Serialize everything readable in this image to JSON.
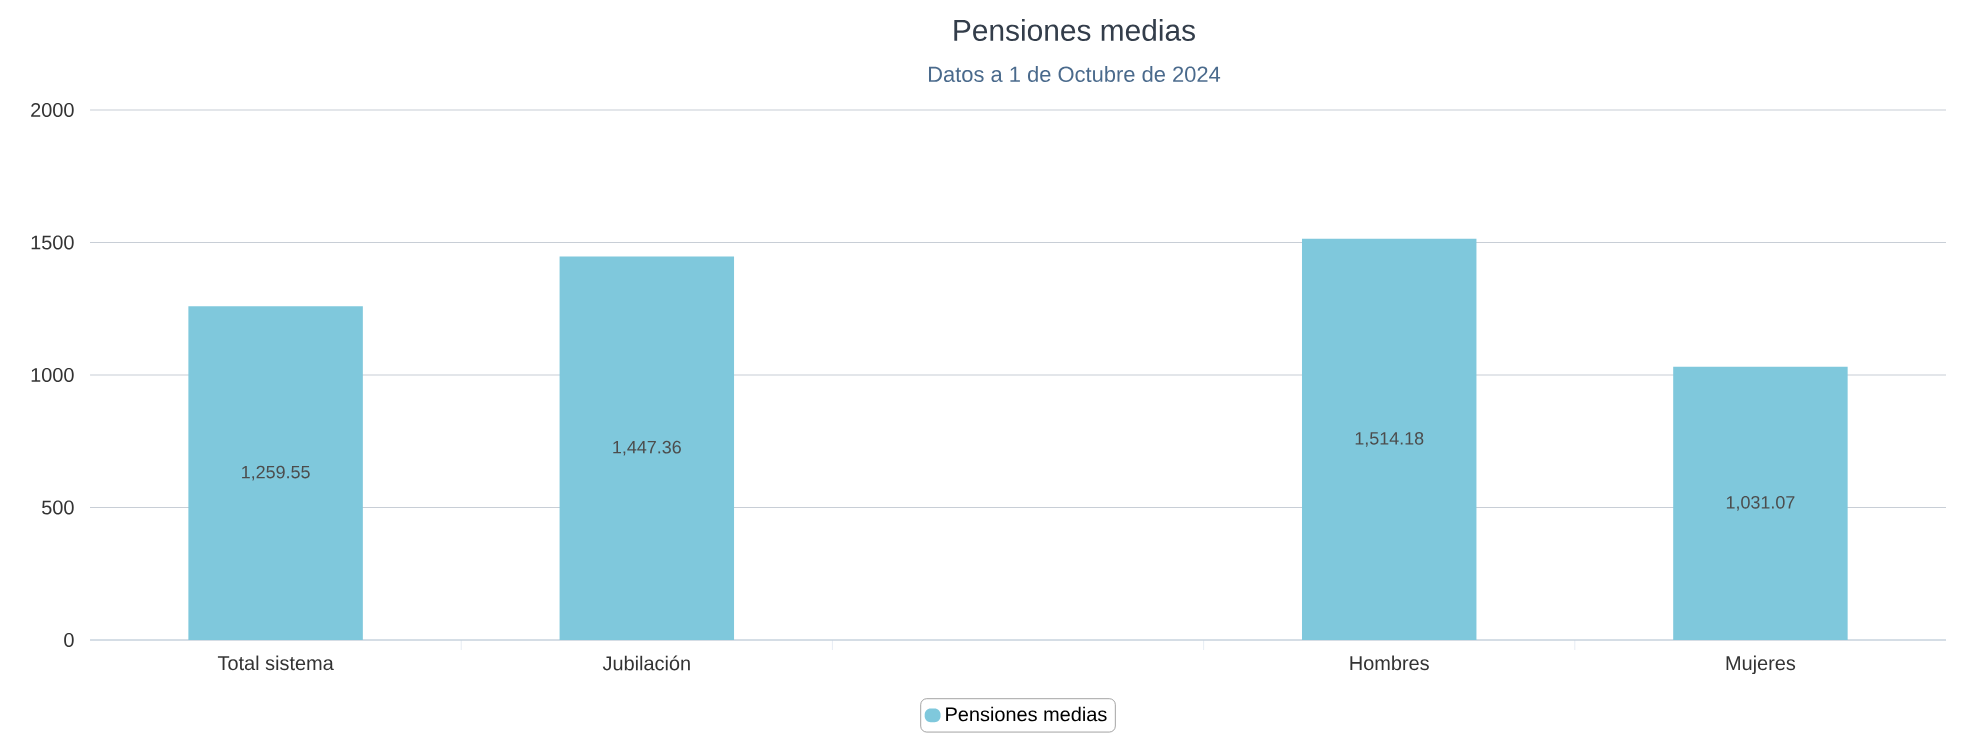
{
  "chart_data": {
    "type": "bar",
    "title": "Pensiones medias",
    "subtitle": "Datos a 1 de Octubre de 2024",
    "categories": [
      "Total sistema",
      "Jubilación",
      null,
      "Hombres",
      "Mujeres"
    ],
    "series": [
      {
        "name": "Pensiones medias",
        "color": "#7fc8dc",
        "values": [
          1259.55,
          1447.36,
          null,
          1514.18,
          1031.07
        ],
        "value_labels": [
          "1,259.55",
          "1,447.36",
          null,
          "1,514.18",
          "1,031.07"
        ]
      }
    ],
    "ylim": [
      0,
      2000
    ],
    "yticks": [
      0,
      500,
      1000,
      1500,
      2000
    ],
    "grid": "y",
    "legend": "bottom"
  }
}
